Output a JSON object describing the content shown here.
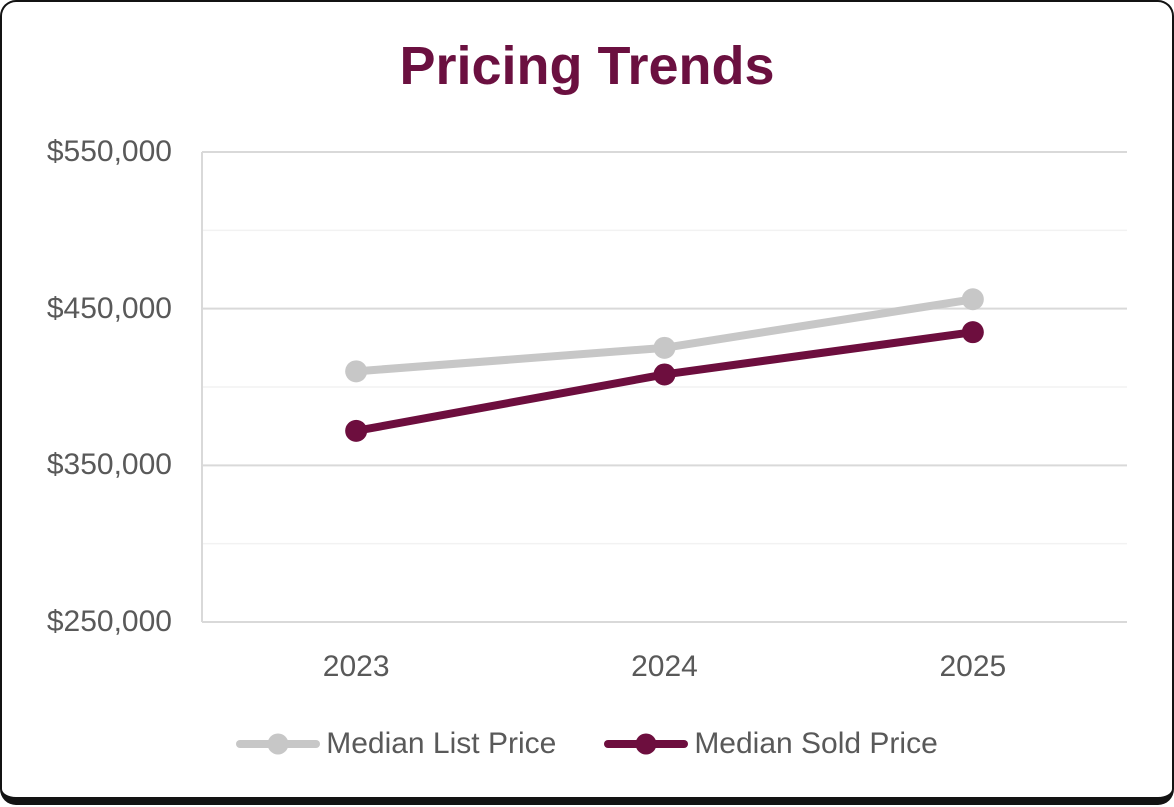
{
  "chart_data": {
    "type": "line",
    "title": "Pricing Trends",
    "categories": [
      "2023",
      "2024",
      "2025"
    ],
    "series": [
      {
        "name": "Median List Price",
        "color": "#c7c7c7",
        "values": [
          410000,
          425000,
          456000
        ]
      },
      {
        "name": "Median Sold Price",
        "color": "#6d0e3e",
        "values": [
          372000,
          408000,
          435000
        ]
      }
    ],
    "ylim": [
      250000,
      550000
    ],
    "y_minor_step": 50000,
    "y_ticks": [
      {
        "value": 550000,
        "label": "$550,000"
      },
      {
        "value": 450000,
        "label": "$450,000"
      },
      {
        "value": 350000,
        "label": "$350,000"
      },
      {
        "value": 250000,
        "label": "$250,000"
      }
    ],
    "grid": "horizontal",
    "legend_position": "bottom"
  },
  "colors": {
    "title": "#6b1040",
    "axis_text": "#595959",
    "grid_major": "#d9d9d9",
    "grid_minor": "#f2f2f2",
    "axis_line": "#d9d9d9",
    "card_border": "#131313",
    "card_background": "#ffffff"
  }
}
